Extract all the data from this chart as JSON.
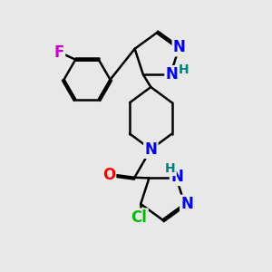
{
  "background_color": "#e8e8e8",
  "bond_color": "#000000",
  "bond_width": 1.8,
  "atoms": {
    "F": {
      "color": "#cc00cc",
      "fontsize": 12,
      "fontweight": "bold"
    },
    "N": {
      "color": "#0000ee",
      "fontsize": 12,
      "fontweight": "bold"
    },
    "H": {
      "color": "#008080",
      "fontsize": 10,
      "fontweight": "normal"
    },
    "O": {
      "color": "#ff0000",
      "fontsize": 12,
      "fontweight": "bold"
    },
    "Cl": {
      "color": "#00bb00",
      "fontsize": 12,
      "fontweight": "bold"
    }
  },
  "xlim": [
    0.5,
    8.5
  ],
  "ylim": [
    0.5,
    9.5
  ]
}
